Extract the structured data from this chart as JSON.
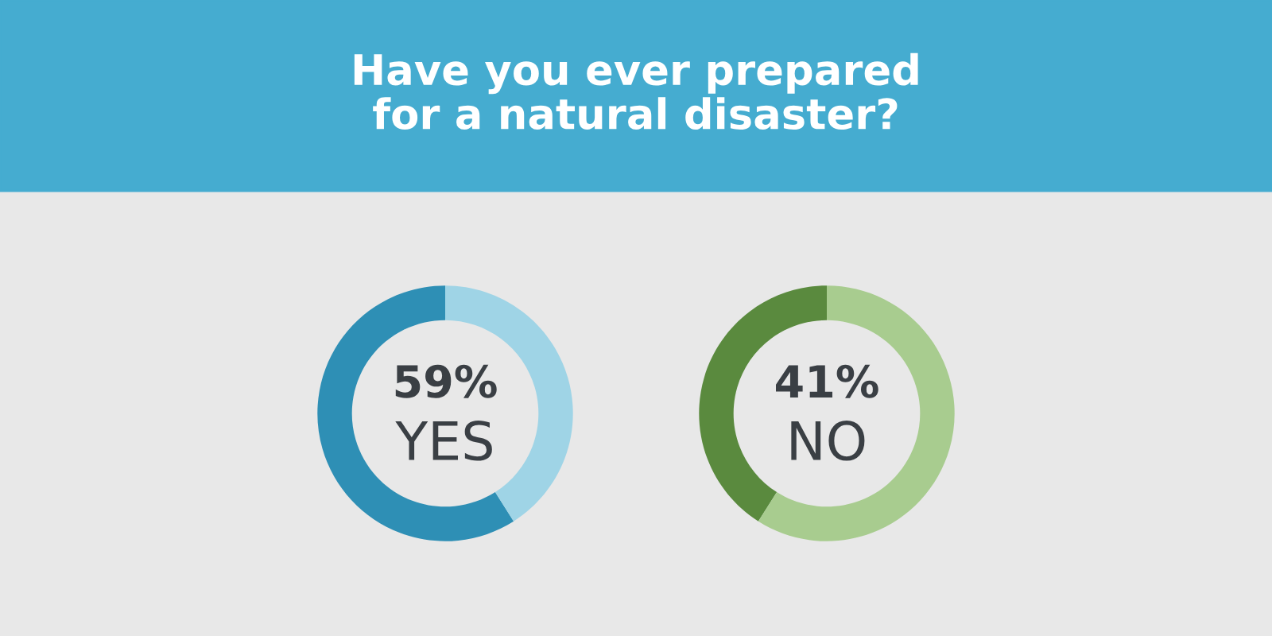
{
  "chart_data": [
    {
      "type": "donut",
      "title": "Have you ever prepared\nfor a natural disaster?",
      "categories": [
        "YES",
        null
      ],
      "values": [
        59,
        41
      ],
      "colors": [
        "#2e8fb5",
        "#9fd4e6"
      ],
      "value_labels": [
        "59%",
        null
      ]
    },
    {
      "type": "donut",
      "categories": [
        "NO",
        null
      ],
      "values": [
        41,
        59
      ],
      "colors": [
        "#5a8a3e",
        "#a8cc8f"
      ],
      "value_labels": [
        "41%",
        null
      ]
    }
  ]
}
